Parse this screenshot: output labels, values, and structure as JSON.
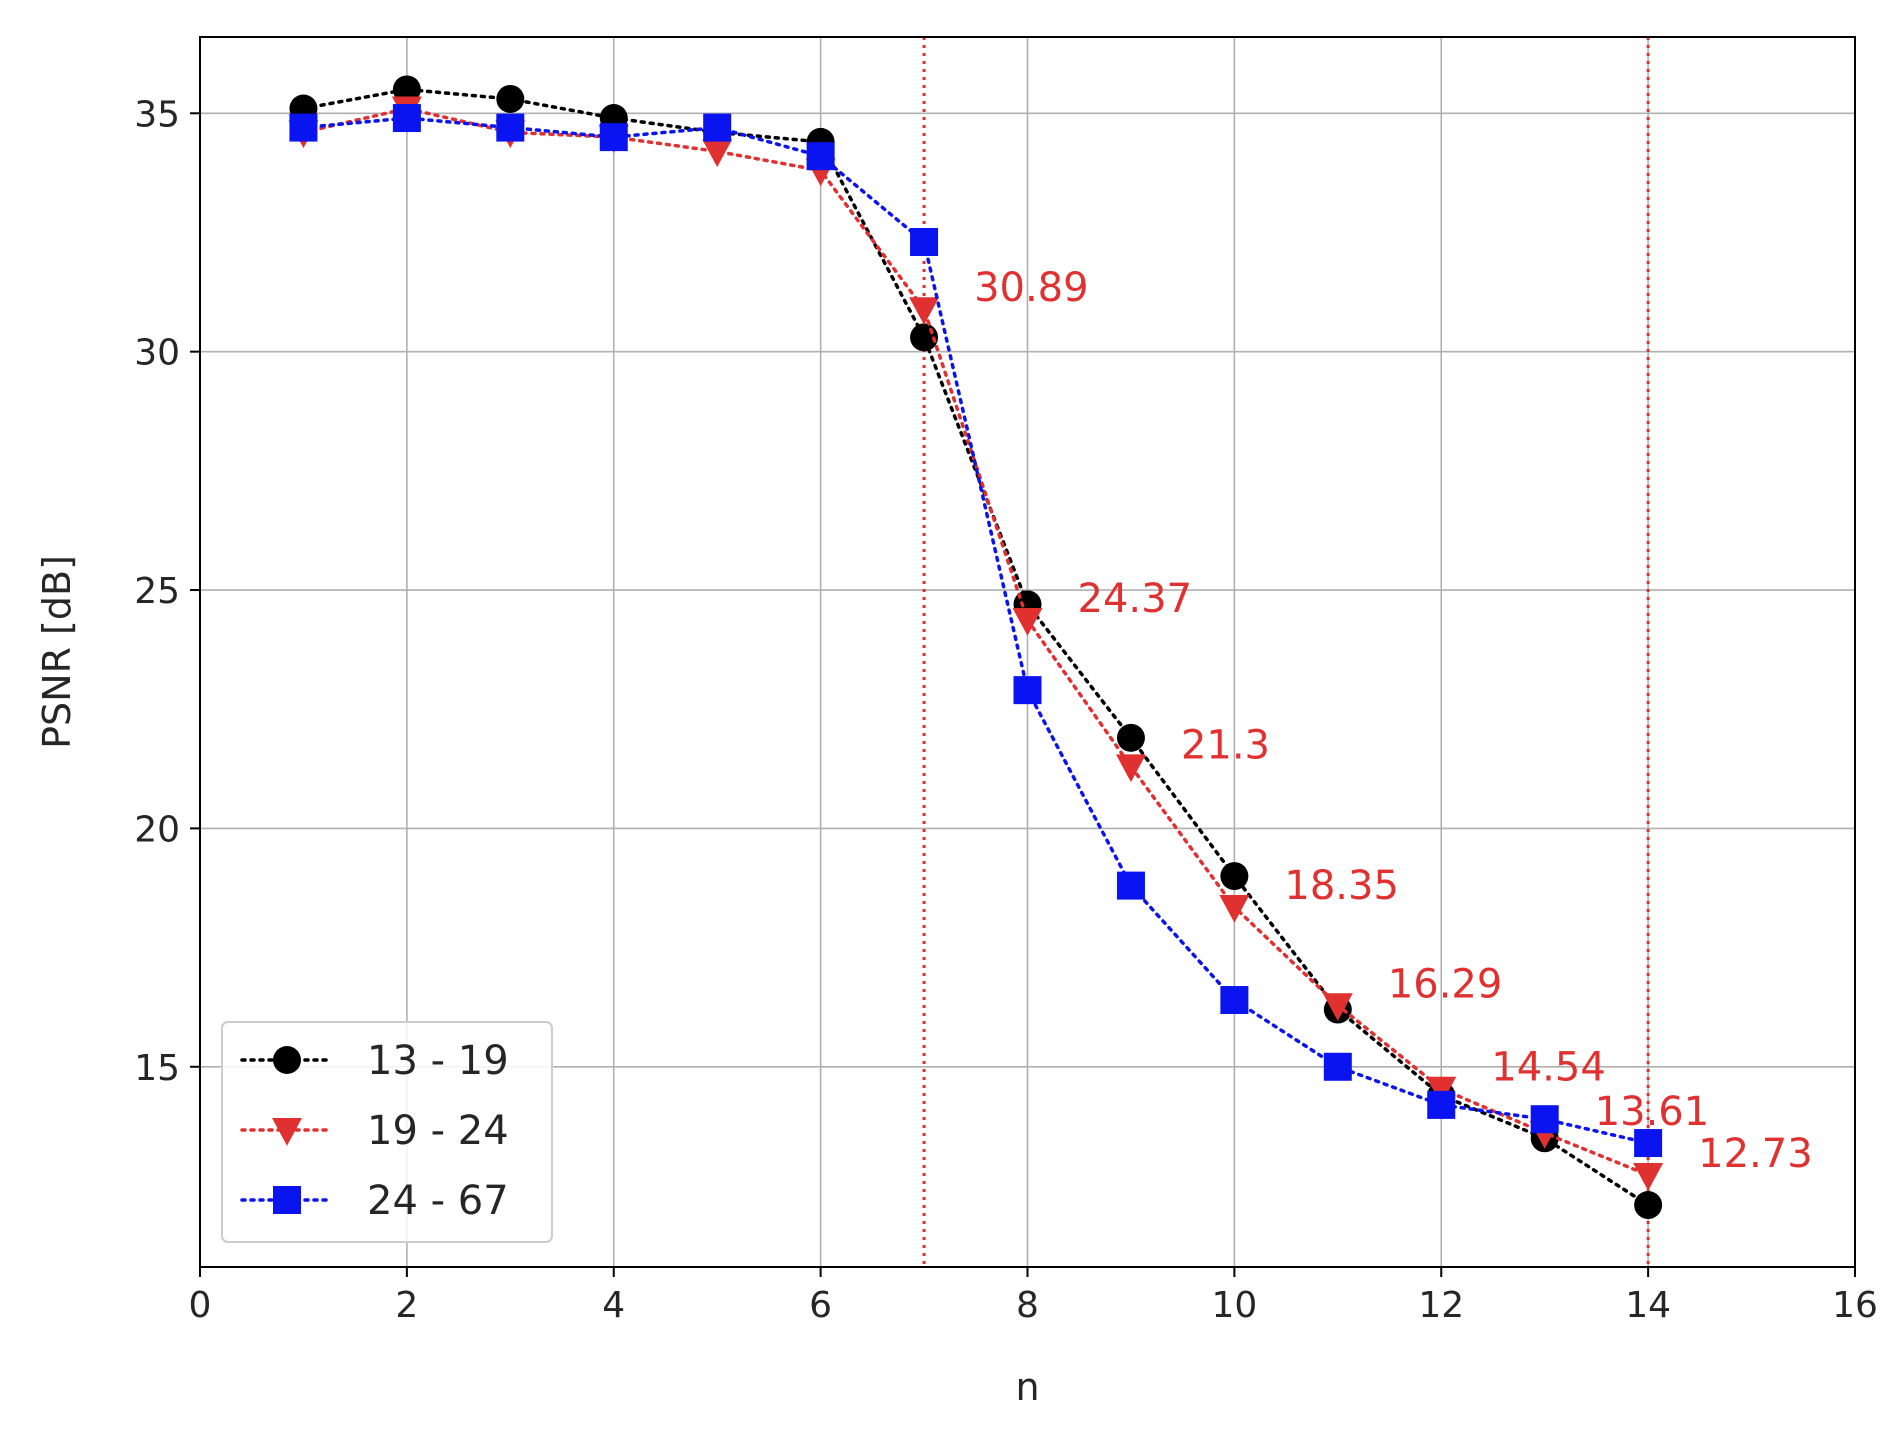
{
  "chart_data": {
    "type": "line",
    "xlabel": "n",
    "ylabel": "PSNR [dB]",
    "xlim": [
      0,
      16
    ],
    "ylim": [
      10.8,
      36.6
    ],
    "xticks": [
      0,
      2,
      4,
      6,
      8,
      10,
      12,
      14,
      16
    ],
    "yticks": [
      15,
      20,
      25,
      30,
      35
    ],
    "grid": true,
    "legend_position": "lower-left",
    "vertical_lines": [
      {
        "x": 7,
        "color": "#e03030",
        "style": "dotted"
      },
      {
        "x": 14,
        "color": "#e03030",
        "style": "dotted"
      }
    ],
    "series": [
      {
        "name": "13 - 19",
        "color": "#000000",
        "marker": "circle",
        "x": [
          1,
          2,
          3,
          4,
          5,
          6,
          7,
          8,
          9,
          10,
          11,
          12,
          13,
          14
        ],
        "values": [
          35.1,
          35.5,
          35.3,
          34.9,
          34.6,
          34.4,
          30.3,
          24.7,
          21.9,
          19.0,
          16.2,
          14.4,
          13.5,
          12.1
        ]
      },
      {
        "name": "19 - 24",
        "color": "#e03030",
        "marker": "triangle-down",
        "x": [
          1,
          2,
          3,
          4,
          5,
          6,
          7,
          8,
          9,
          10,
          11,
          12,
          13,
          14
        ],
        "values": [
          34.6,
          35.1,
          34.6,
          34.5,
          34.2,
          33.8,
          30.89,
          24.37,
          21.3,
          18.35,
          16.29,
          14.54,
          13.61,
          12.73
        ]
      },
      {
        "name": "24 - 67",
        "color": "#0a14f0",
        "marker": "square",
        "x": [
          1,
          2,
          3,
          4,
          5,
          6,
          7,
          8,
          9,
          10,
          11,
          12,
          13,
          14
        ],
        "values": [
          34.7,
          34.9,
          34.7,
          34.5,
          34.7,
          34.1,
          32.3,
          22.9,
          18.8,
          16.4,
          15.0,
          14.2,
          13.9,
          13.4
        ]
      }
    ],
    "annotations": [
      {
        "x": 7,
        "text": "30.89"
      },
      {
        "x": 8,
        "text": "24.37"
      },
      {
        "x": 9,
        "text": "21.3"
      },
      {
        "x": 10,
        "text": "18.35"
      },
      {
        "x": 11,
        "text": "16.29"
      },
      {
        "x": 12,
        "text": "14.54"
      },
      {
        "x": 13,
        "text": "13.61"
      },
      {
        "x": 14,
        "text": "12.73"
      }
    ],
    "annotation_color": "#e03030"
  }
}
